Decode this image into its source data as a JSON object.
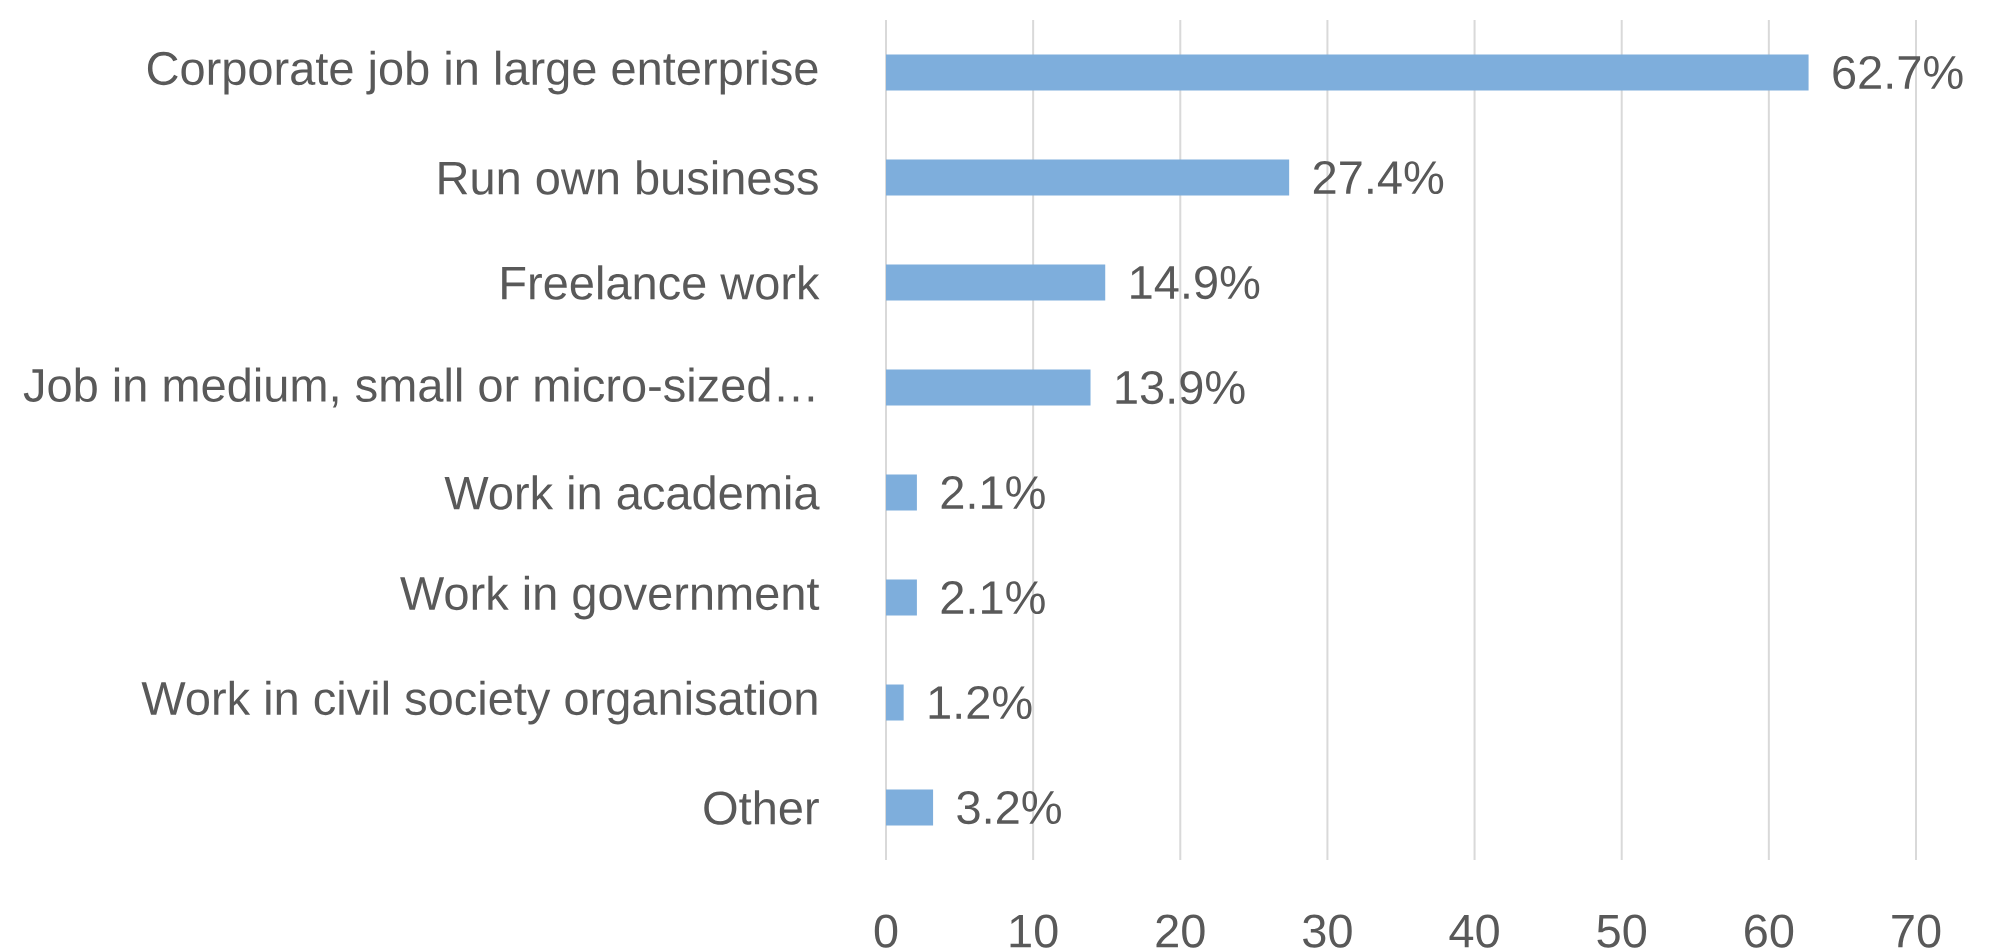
{
  "chart_data": {
    "type": "bar",
    "orientation": "horizontal",
    "categories": [
      "Corporate job in large enterprise",
      "Run own business",
      "Freelance work",
      "Job in medium, small or micro-sized…",
      "Work in academia",
      "Work in government",
      "Work in civil society organisation",
      "Other"
    ],
    "values": [
      62.7,
      27.4,
      14.9,
      13.9,
      2.1,
      2.1,
      1.2,
      3.2
    ],
    "value_labels": [
      "62.7%",
      "27.4%",
      "14.9%",
      "13.9%",
      "2.1%",
      "2.1%",
      "1.2%",
      "3.2%"
    ],
    "color": "#7eaedc",
    "xlim": [
      0,
      70
    ],
    "xticks": [
      0,
      10,
      20,
      30,
      40,
      50,
      60,
      70
    ],
    "grid": "x"
  }
}
